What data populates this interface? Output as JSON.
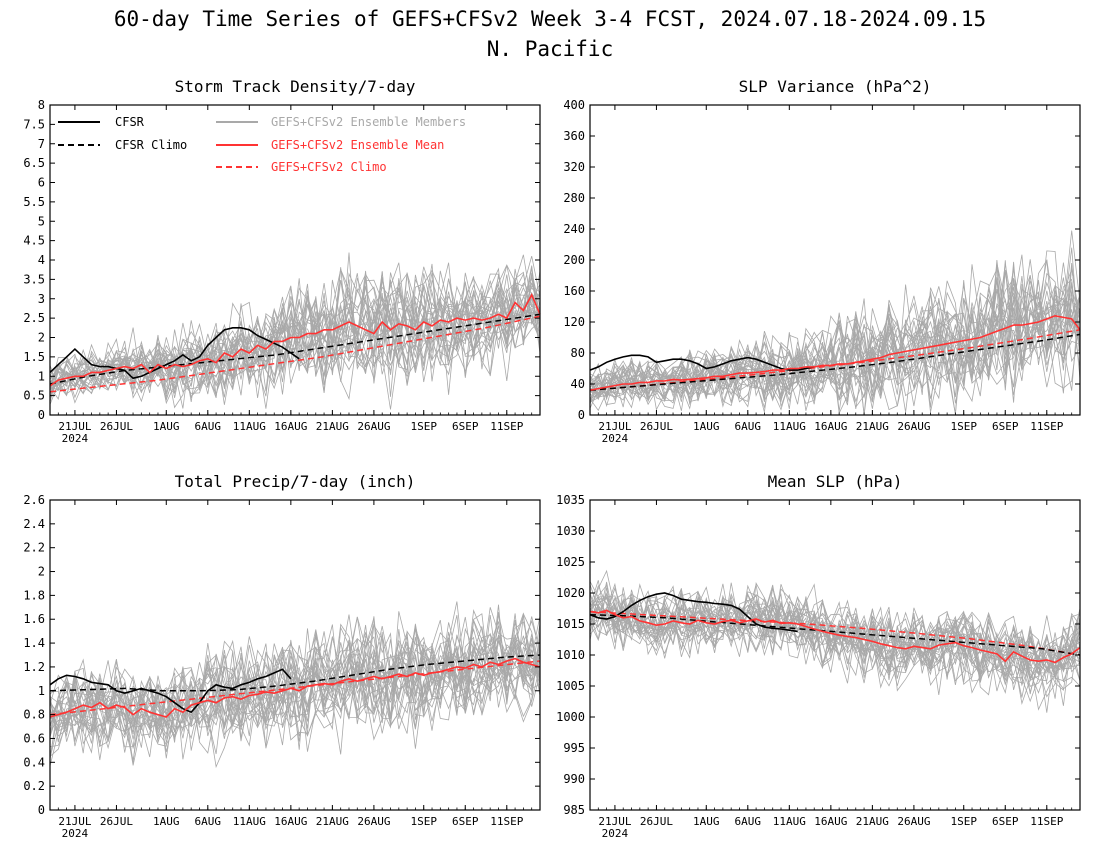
{
  "figure": {
    "title": "60-day Time Series of GEFS+CFSv2 Week 3-4 FCST, 2024.07.18-2024.09.15",
    "subtitle": "N. Pacific"
  },
  "x_axis": {
    "start_date": "2024-07-18",
    "end_date": "2024-09-15",
    "ticks": [
      {
        "day": 3,
        "label": "21JUL"
      },
      {
        "day": 8,
        "label": "26JUL"
      },
      {
        "day": 14,
        "label": "1AUG"
      },
      {
        "day": 19,
        "label": "6AUG"
      },
      {
        "day": 24,
        "label": "11AUG"
      },
      {
        "day": 29,
        "label": "16AUG"
      },
      {
        "day": 34,
        "label": "21AUG"
      },
      {
        "day": 39,
        "label": "26AUG"
      },
      {
        "day": 45,
        "label": "1SEP"
      },
      {
        "day": 50,
        "label": "6SEP"
      },
      {
        "day": 55,
        "label": "11SEP"
      }
    ],
    "year_label": "2024"
  },
  "legend": {
    "cfsr": "CFSR",
    "cfsr_climo": "CFSR Climo",
    "ens_members": "GEFS+CFSv2 Ensemble Members",
    "ens_mean": "GEFS+CFSv2 Ensemble Mean",
    "gefs_climo": "GEFS+CFSv2 Climo"
  },
  "colors": {
    "cfsr": "#000000",
    "members": "#a9a9a9",
    "mean": "#ff3333"
  },
  "chart_data": [
    {
      "type": "line",
      "title": "Storm Track Density/7-day",
      "ylim": [
        0,
        8
      ],
      "yticks": [
        "0",
        "0.5",
        "1",
        "1.5",
        "2",
        "2.5",
        "3",
        "3.5",
        "4",
        "4.5",
        "5",
        "5.5",
        "6",
        "6.5",
        "7",
        "7.5",
        "8"
      ],
      "spread": [
        0.3,
        0.6,
        1.0,
        0.7
      ],
      "series": {
        "cfsr": [
          1.1,
          1.3,
          1.5,
          1.7,
          1.5,
          1.3,
          1.25,
          1.25,
          1.2,
          1.15,
          0.95,
          1.0,
          1.1,
          1.2,
          1.3,
          1.4,
          1.55,
          1.4,
          1.5,
          1.8,
          2.0,
          2.2,
          2.25,
          2.25,
          2.2,
          2.05,
          1.95,
          1.85,
          1.75,
          1.6,
          1.45
        ],
        "cfsr_climo": [
          0.8,
          1.0,
          1.15,
          1.25,
          1.35,
          1.45,
          1.55,
          1.7,
          1.85,
          2.0,
          2.15,
          2.3,
          2.45,
          2.6
        ],
        "ens_mean": [
          0.75,
          0.9,
          0.95,
          1.0,
          1.0,
          1.1,
          1.1,
          1.15,
          1.2,
          1.25,
          1.2,
          1.3,
          1.1,
          1.3,
          1.2,
          1.3,
          1.25,
          1.3,
          1.4,
          1.45,
          1.35,
          1.6,
          1.5,
          1.7,
          1.6,
          1.8,
          1.7,
          1.9,
          1.9,
          2.0,
          2.0,
          2.1,
          2.1,
          2.2,
          2.2,
          2.3,
          2.4,
          2.3,
          2.2,
          2.1,
          2.4,
          2.2,
          2.35,
          2.3,
          2.2,
          2.4,
          2.3,
          2.45,
          2.4,
          2.5,
          2.45,
          2.5,
          2.45,
          2.5,
          2.6,
          2.5,
          2.9,
          2.7,
          3.1,
          2.6
        ],
        "gefs_climo": [
          0.6,
          0.75,
          0.9,
          1.1,
          1.3,
          1.5,
          1.75,
          2.0,
          2.25,
          2.55
        ]
      }
    },
    {
      "type": "line",
      "title": "SLP Variance (hPa^2)",
      "ylim": [
        0,
        400
      ],
      "yticks": [
        "0",
        "40",
        "80",
        "120",
        "160",
        "200",
        "240",
        "280",
        "320",
        "360",
        "400"
      ],
      "spread": [
        15,
        25,
        45,
        55
      ],
      "series": {
        "cfsr": [
          58,
          62,
          68,
          72,
          75,
          77,
          77,
          75,
          68,
          70,
          72,
          72,
          70,
          66,
          60,
          62,
          66,
          70,
          72,
          74,
          72,
          68,
          64,
          60,
          58,
          58,
          60,
          62
        ],
        "cfsr_climo": [
          32,
          36,
          40,
          44,
          48,
          52,
          57,
          62,
          68,
          75,
          82,
          89,
          96,
          104
        ],
        "ens_mean": [
          32,
          34,
          36,
          38,
          40,
          40,
          42,
          42,
          44,
          44,
          46,
          45,
          46,
          47,
          48,
          50,
          50,
          52,
          54,
          54,
          55,
          56,
          58,
          58,
          60,
          60,
          62,
          62,
          64,
          64,
          66,
          66,
          68,
          70,
          72,
          74,
          78,
          80,
          82,
          84,
          86,
          88,
          90,
          92,
          94,
          96,
          98,
          100,
          104,
          108,
          112,
          116,
          116,
          118,
          120,
          124,
          128,
          126,
          124,
          110
        ],
        "gefs_climo": [
          32,
          38,
          45,
          52,
          60,
          68,
          77,
          87,
          98,
          110
        ]
      }
    },
    {
      "type": "line",
      "title": "Total Precip/7-day (inch)",
      "ylim": [
        0,
        2.6
      ],
      "yticks": [
        "0",
        "0.2",
        "0.4",
        "0.6",
        "0.8",
        "1",
        "1.2",
        "1.4",
        "1.6",
        "1.8",
        "2",
        "2.2",
        "2.4",
        "2.6"
      ],
      "spread": [
        0.2,
        0.25,
        0.3,
        0.25
      ],
      "series": {
        "cfsr": [
          1.05,
          1.1,
          1.13,
          1.12,
          1.1,
          1.07,
          1.06,
          1.05,
          1.0,
          0.98,
          1.0,
          1.02,
          1.0,
          0.98,
          0.95,
          0.9,
          0.85,
          0.82,
          0.9,
          1.0,
          1.05,
          1.03,
          1.02,
          1.05,
          1.07,
          1.1,
          1.12,
          1.15,
          1.18,
          1.1
        ],
        "cfsr_climo": [
          1.0,
          1.01,
          1.02,
          1.0,
          1.0,
          1.01,
          1.04,
          1.08,
          1.13,
          1.18,
          1.22,
          1.25,
          1.28,
          1.3
        ],
        "ens_mean": [
          0.78,
          0.8,
          0.82,
          0.85,
          0.88,
          0.86,
          0.9,
          0.85,
          0.88,
          0.86,
          0.8,
          0.85,
          0.82,
          0.8,
          0.78,
          0.85,
          0.82,
          0.88,
          0.9,
          0.92,
          0.9,
          0.94,
          0.95,
          0.93,
          0.96,
          0.97,
          0.99,
          0.98,
          1.0,
          1.02,
          1.0,
          1.04,
          1.05,
          1.06,
          1.05,
          1.08,
          1.1,
          1.08,
          1.1,
          1.12,
          1.1,
          1.12,
          1.14,
          1.12,
          1.15,
          1.13,
          1.15,
          1.16,
          1.18,
          1.2,
          1.19,
          1.22,
          1.2,
          1.24,
          1.22,
          1.25,
          1.27,
          1.24,
          1.22,
          1.2
        ],
        "gefs_climo": [
          0.8,
          0.85,
          0.9,
          0.95,
          1.0,
          1.05,
          1.1,
          1.15,
          1.2,
          1.25
        ]
      }
    },
    {
      "type": "line",
      "title": "Mean SLP (hPa)",
      "ylim": [
        985,
        1035
      ],
      "yticks": [
        "985",
        "990",
        "995",
        "1000",
        "1005",
        "1010",
        "1015",
        "1020",
        "1025",
        "1030",
        "1035"
      ],
      "spread": [
        3,
        3,
        3.5,
        4
      ],
      "series": {
        "cfsr": [
          1016.5,
          1016,
          1015.8,
          1016.2,
          1017,
          1018,
          1018.8,
          1019.4,
          1019.8,
          1020,
          1019.6,
          1019,
          1018.8,
          1018.6,
          1018.5,
          1018.3,
          1018.2,
          1018,
          1017.4,
          1016.2,
          1015,
          1014.5,
          1014.3,
          1014.2,
          1014,
          1013.8
        ],
        "cfsr_climo": [
          1016.5,
          1016.3,
          1016,
          1015.5,
          1015,
          1014.5,
          1014,
          1013.5,
          1013,
          1012.5,
          1012,
          1011.5,
          1011,
          1010
        ],
        "ens_mean": [
          1017,
          1016.8,
          1017.2,
          1016.5,
          1016,
          1016.2,
          1015.5,
          1015.2,
          1014.8,
          1015,
          1015.5,
          1015.2,
          1015,
          1015.6,
          1015.2,
          1015,
          1015.4,
          1015.6,
          1015.2,
          1015.5,
          1015.8,
          1015.3,
          1015.6,
          1015.1,
          1015.2,
          1015,
          1014.6,
          1014.2,
          1013.8,
          1013.5,
          1013.2,
          1013,
          1012.8,
          1012.5,
          1012.2,
          1011.8,
          1011.5,
          1011.2,
          1011,
          1011.4,
          1011.2,
          1011,
          1011.6,
          1011.8,
          1012,
          1011.5,
          1011.2,
          1010.8,
          1010.5,
          1010.2,
          1009,
          1010.5,
          1009.8,
          1009.2,
          1009,
          1009.2,
          1008.8,
          1009.6,
          1010.2,
          1011.2
        ],
        "gefs_climo": [
          1017,
          1016.5,
          1016,
          1015.5,
          1015,
          1014.3,
          1013.5,
          1012.6,
          1011.5,
          1010
        ]
      }
    }
  ]
}
